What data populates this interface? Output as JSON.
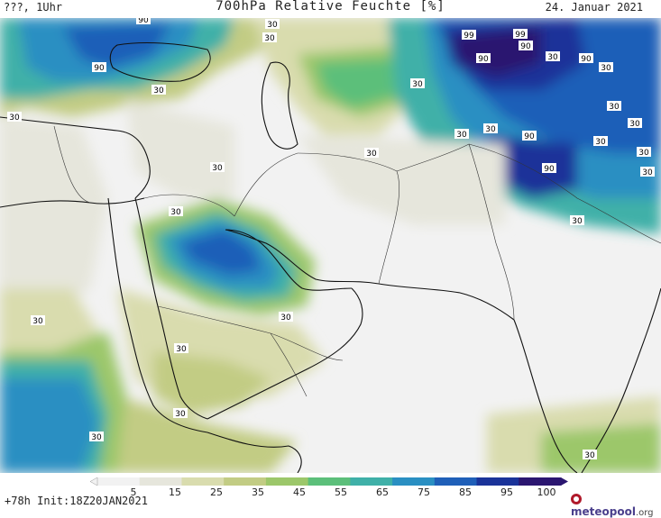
{
  "header": {
    "left": "???, 1Uhr",
    "title": "700hPa Relative Feuchte [%]",
    "date": "24. Januar 2021"
  },
  "footer": {
    "run": "+78h  Init:18Z20JAN2021"
  },
  "logo": {
    "name": "meteopool",
    "suffix": ".org"
  },
  "legend": {
    "labels": [
      "5",
      "15",
      "25",
      "35",
      "45",
      "55",
      "65",
      "75",
      "85",
      "95",
      "100"
    ],
    "colors": [
      "#f2f2f2",
      "#e6e6dc",
      "#d9dcae",
      "#c2cc84",
      "#9cc76a",
      "#5cbf7a",
      "#3fb0a8",
      "#2a8fc2",
      "#1f5fb8",
      "#1a3399",
      "#2b1670"
    ]
  },
  "contour_labels": [
    {
      "id": "l1",
      "text": "90"
    },
    {
      "id": "l2",
      "text": "30"
    },
    {
      "id": "l3",
      "text": "90"
    },
    {
      "id": "l4",
      "text": "30"
    },
    {
      "id": "l5",
      "text": "30"
    },
    {
      "id": "l6",
      "text": "30"
    },
    {
      "id": "l7",
      "text": "99"
    },
    {
      "id": "l8",
      "text": "90"
    },
    {
      "id": "l9",
      "text": "99"
    },
    {
      "id": "l10",
      "text": "90"
    },
    {
      "id": "l11",
      "text": "30"
    },
    {
      "id": "l12",
      "text": "90"
    },
    {
      "id": "l13",
      "text": "30"
    },
    {
      "id": "l14",
      "text": "30"
    },
    {
      "id": "l15",
      "text": "30"
    },
    {
      "id": "l16",
      "text": "90"
    },
    {
      "id": "l17",
      "text": "30"
    },
    {
      "id": "l18",
      "text": "90"
    },
    {
      "id": "l19",
      "text": "30"
    },
    {
      "id": "l20",
      "text": "30"
    },
    {
      "id": "l21",
      "text": "30"
    },
    {
      "id": "l22",
      "text": "30"
    },
    {
      "id": "l23",
      "text": "30"
    },
    {
      "id": "l24",
      "text": "30"
    },
    {
      "id": "l25",
      "text": "30"
    },
    {
      "id": "l26",
      "text": "30"
    },
    {
      "id": "l27",
      "text": "30"
    },
    {
      "id": "l28",
      "text": "30"
    },
    {
      "id": "l29",
      "text": "30"
    },
    {
      "id": "l30",
      "text": "30"
    },
    {
      "id": "l31",
      "text": "30"
    },
    {
      "id": "l32",
      "text": "30"
    },
    {
      "id": "l33",
      "text": "30"
    }
  ]
}
